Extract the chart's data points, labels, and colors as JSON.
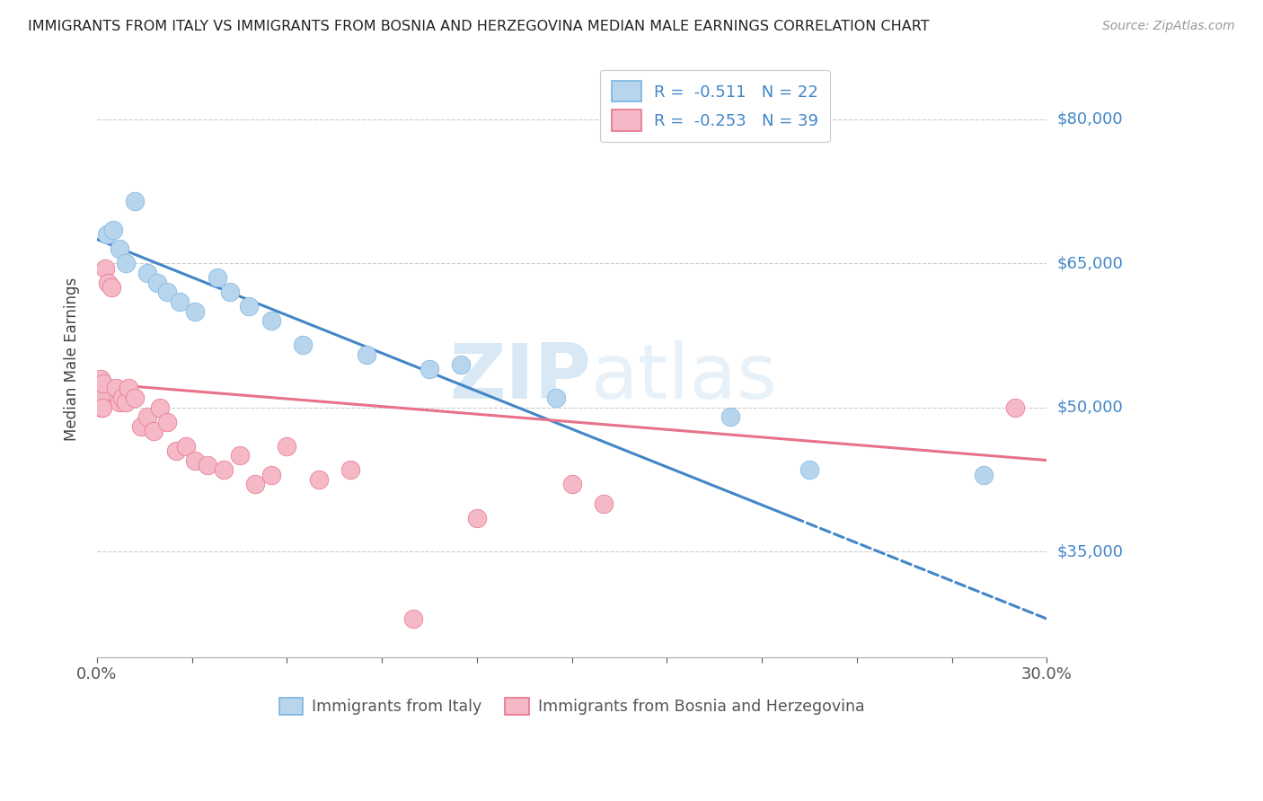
{
  "title": "IMMIGRANTS FROM ITALY VS IMMIGRANTS FROM BOSNIA AND HERZEGOVINA MEDIAN MALE EARNINGS CORRELATION CHART",
  "source": "Source: ZipAtlas.com",
  "ylabel": "Median Male Earnings",
  "y_ticks": [
    35000,
    50000,
    65000,
    80000
  ],
  "y_tick_labels": [
    "$35,000",
    "$50,000",
    "$65,000",
    "$80,000"
  ],
  "x_min": 0.0,
  "x_max": 30.0,
  "y_min": 24000,
  "y_max": 86000,
  "italy_R": "-0.511",
  "italy_N": "22",
  "bosnia_R": "-0.253",
  "bosnia_N": "39",
  "italy_color": "#7ab4e0",
  "italy_fill": "#b8d5ee",
  "bosnia_color": "#e8728a",
  "bosnia_fill": "#f4b8c6",
  "trend_italy_color": "#4286c8",
  "trend_bosnia_color": "#e8728a",
  "legend_italy_label": "Immigrants from Italy",
  "legend_bosnia_label": "Immigrants from Bosnia and Herzegovina",
  "watermark_zip": "ZIP",
  "watermark_atlas": "atlas",
  "italy_scatter": [
    [
      0.3,
      68000
    ],
    [
      0.5,
      68500
    ],
    [
      0.7,
      66500
    ],
    [
      0.9,
      65000
    ],
    [
      1.2,
      71500
    ],
    [
      1.6,
      64000
    ],
    [
      1.9,
      63000
    ],
    [
      2.2,
      62000
    ],
    [
      2.6,
      61000
    ],
    [
      3.1,
      60000
    ],
    [
      3.8,
      63500
    ],
    [
      4.2,
      62000
    ],
    [
      4.8,
      60500
    ],
    [
      5.5,
      59000
    ],
    [
      6.5,
      56500
    ],
    [
      8.5,
      55500
    ],
    [
      10.5,
      54000
    ],
    [
      11.5,
      54500
    ],
    [
      14.5,
      51000
    ],
    [
      20.0,
      49000
    ],
    [
      22.5,
      43500
    ],
    [
      28.0,
      43000
    ]
  ],
  "bosnia_scatter": [
    [
      0.08,
      52500
    ],
    [
      0.09,
      51500
    ],
    [
      0.1,
      53000
    ],
    [
      0.11,
      51000
    ],
    [
      0.12,
      52000
    ],
    [
      0.13,
      50000
    ],
    [
      0.15,
      51500
    ],
    [
      0.17,
      50000
    ],
    [
      0.2,
      52500
    ],
    [
      0.25,
      64500
    ],
    [
      0.35,
      63000
    ],
    [
      0.45,
      62500
    ],
    [
      0.6,
      52000
    ],
    [
      0.7,
      50500
    ],
    [
      0.8,
      51000
    ],
    [
      0.9,
      50500
    ],
    [
      1.0,
      52000
    ],
    [
      1.2,
      51000
    ],
    [
      1.4,
      48000
    ],
    [
      1.6,
      49000
    ],
    [
      1.8,
      47500
    ],
    [
      2.0,
      50000
    ],
    [
      2.2,
      48500
    ],
    [
      2.5,
      45500
    ],
    [
      2.8,
      46000
    ],
    [
      3.1,
      44500
    ],
    [
      3.5,
      44000
    ],
    [
      4.0,
      43500
    ],
    [
      4.5,
      45000
    ],
    [
      5.0,
      42000
    ],
    [
      5.5,
      43000
    ],
    [
      6.0,
      46000
    ],
    [
      7.0,
      42500
    ],
    [
      8.0,
      43500
    ],
    [
      10.0,
      28000
    ],
    [
      12.0,
      38500
    ],
    [
      15.0,
      42000
    ],
    [
      16.0,
      40000
    ],
    [
      29.0,
      50000
    ]
  ],
  "italy_trendline_x0": 0.0,
  "italy_trendline_y0": 67500,
  "italy_trendline_x1": 30.0,
  "italy_trendline_y1": 28000,
  "italy_solid_end_x": 22.0,
  "bosnia_trendline_x0": 0.0,
  "bosnia_trendline_y0": 52500,
  "bosnia_trendline_x1": 30.0,
  "bosnia_trendline_y1": 44500
}
